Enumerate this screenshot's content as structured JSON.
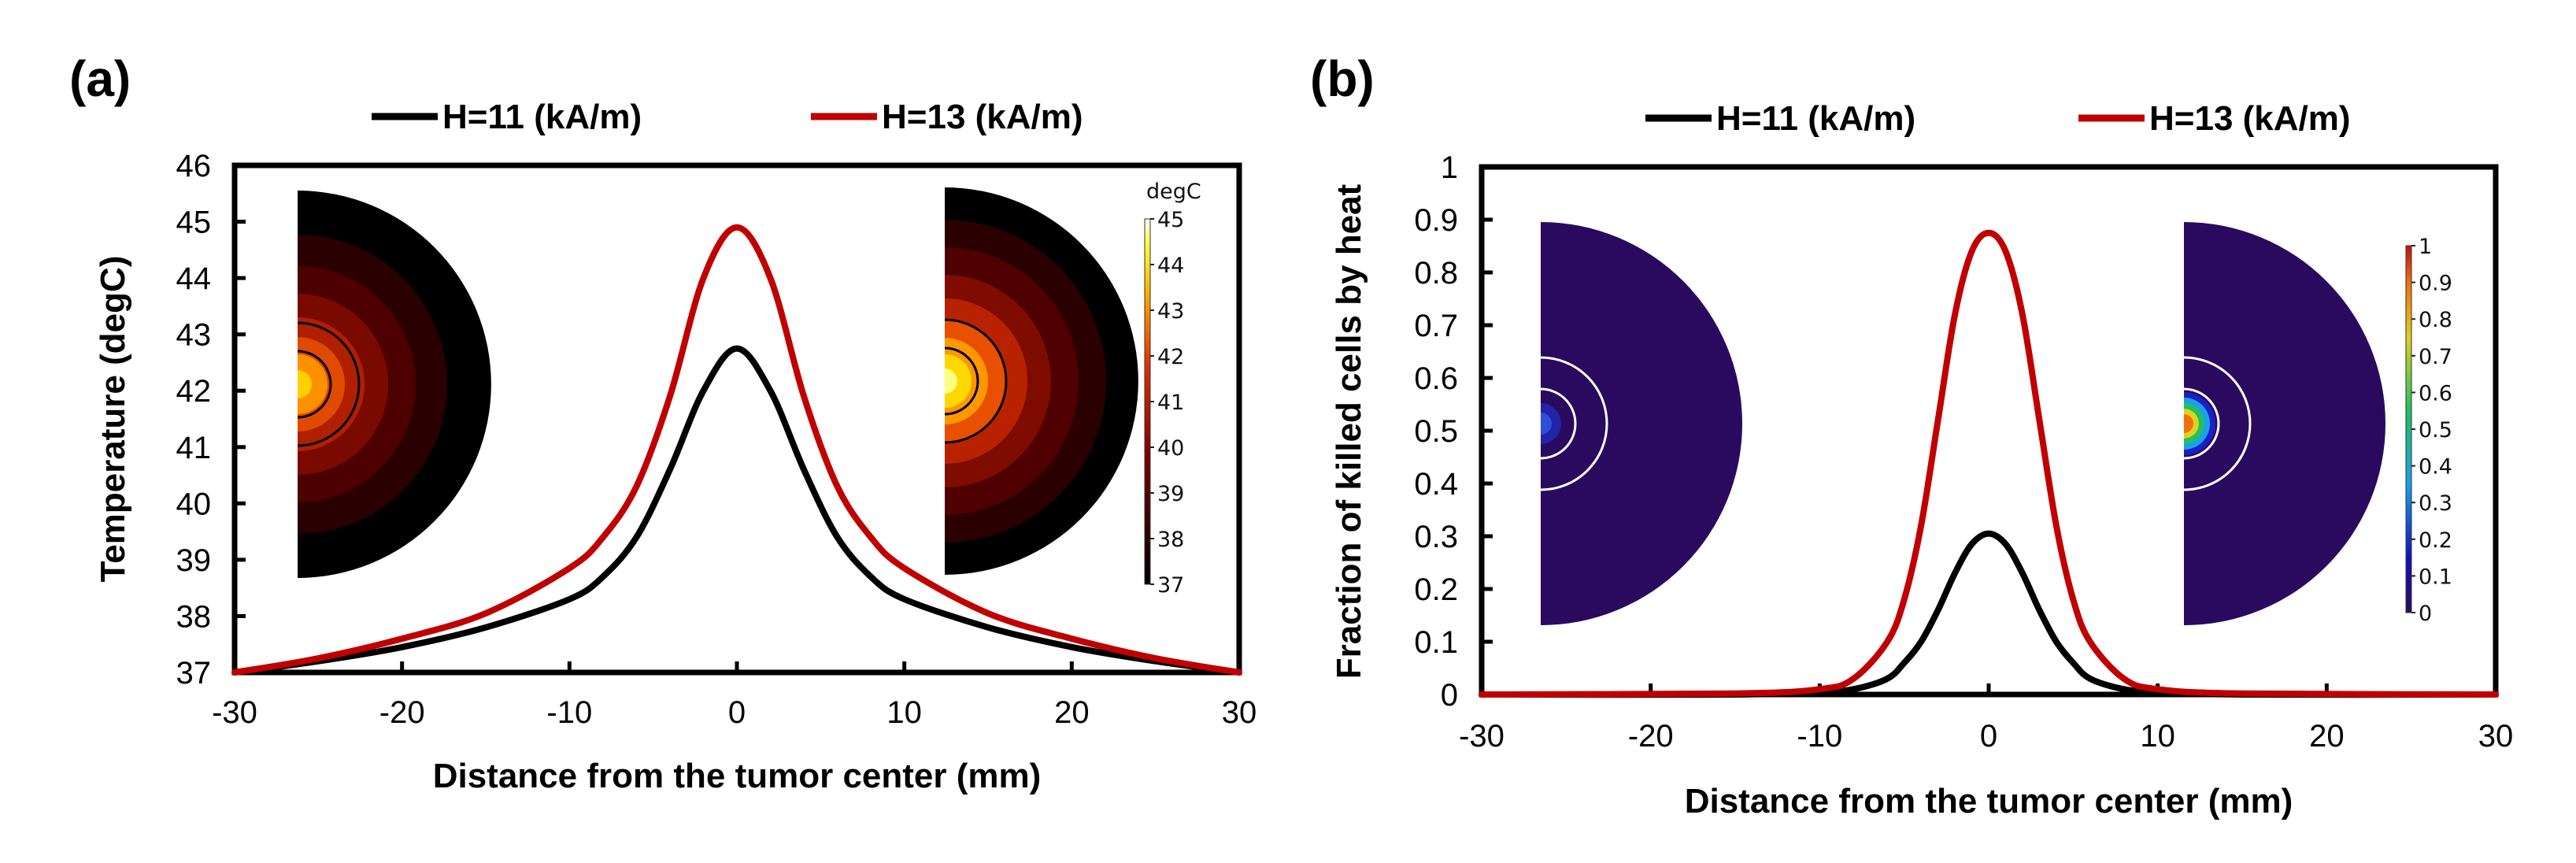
{
  "chart_data": [
    {
      "type": "line",
      "panel_label": "(a)",
      "xlabel": "Distance from the tumor center (mm)",
      "ylabel": "Temperature (degC)",
      "xlim": [
        -30,
        30
      ],
      "ylim": [
        37,
        46
      ],
      "x_ticks": [
        -30,
        -20,
        -10,
        0,
        10,
        20,
        30
      ],
      "y_ticks": [
        37,
        38,
        39,
        40,
        41,
        42,
        43,
        44,
        45,
        46
      ],
      "grid": false,
      "legend_position": "top",
      "series": [
        {
          "name": "H=11 (kA/m)",
          "color": "#000000",
          "x": [
            -30,
            -25,
            -20,
            -15,
            -10,
            -8,
            -6,
            -4,
            -2,
            0,
            2,
            4,
            6,
            8,
            10,
            15,
            20,
            25,
            30
          ],
          "y": [
            37.0,
            37.2,
            37.45,
            37.8,
            38.3,
            38.7,
            39.4,
            40.6,
            42.0,
            42.75,
            42.0,
            40.6,
            39.4,
            38.7,
            38.3,
            37.8,
            37.45,
            37.2,
            37.0
          ]
        },
        {
          "name": "H=13 (kA/m)",
          "color": "#c00000",
          "x": [
            -30,
            -25,
            -20,
            -15,
            -10,
            -8,
            -6,
            -4,
            -2,
            0,
            2,
            4,
            6,
            8,
            10,
            15,
            20,
            25,
            30
          ],
          "y": [
            37.0,
            37.25,
            37.6,
            38.05,
            38.85,
            39.4,
            40.3,
            41.9,
            44.0,
            44.9,
            44.0,
            41.9,
            40.3,
            39.4,
            38.85,
            38.05,
            37.6,
            37.25,
            37.0
          ]
        }
      ],
      "colorbar": {
        "title": "degC",
        "ticks": [
          "45",
          "44",
          "43",
          "42",
          "41",
          "40",
          "39",
          "38",
          "37"
        ]
      }
    },
    {
      "type": "line",
      "panel_label": "(b)",
      "xlabel": "Distance from the tumor center (mm)",
      "ylabel": "Fraction of killed cells by heat",
      "xlim": [
        -30,
        30
      ],
      "ylim": [
        0,
        1
      ],
      "x_ticks": [
        -30,
        -20,
        -10,
        0,
        10,
        20,
        30
      ],
      "y_ticks": [
        0,
        0.1,
        0.2,
        0.3,
        0.4,
        0.5,
        0.6,
        0.7,
        0.8,
        0.9,
        1
      ],
      "grid": false,
      "legend_position": "top",
      "series": [
        {
          "name": "H=11 (kA/m)",
          "color": "#000000",
          "x": [
            -30,
            -15,
            -10,
            -8,
            -6,
            -5,
            -4,
            -3,
            -2,
            -1,
            0,
            1,
            2,
            3,
            4,
            5,
            6,
            8,
            10,
            15,
            30
          ],
          "y": [
            0,
            0,
            0.005,
            0.01,
            0.03,
            0.06,
            0.1,
            0.16,
            0.23,
            0.285,
            0.305,
            0.285,
            0.23,
            0.16,
            0.1,
            0.06,
            0.03,
            0.01,
            0.005,
            0,
            0
          ]
        },
        {
          "name": "H=13 (kA/m)",
          "color": "#c00000",
          "x": [
            -30,
            -15,
            -10,
            -8,
            -6,
            -5,
            -4,
            -3,
            -2,
            -1,
            0,
            1,
            2,
            3,
            4,
            5,
            6,
            8,
            10,
            15,
            30
          ],
          "y": [
            0,
            0.002,
            0.01,
            0.03,
            0.1,
            0.18,
            0.32,
            0.52,
            0.72,
            0.84,
            0.875,
            0.84,
            0.72,
            0.52,
            0.32,
            0.18,
            0.1,
            0.03,
            0.01,
            0.002,
            0
          ]
        }
      ],
      "colorbar": {
        "title": "",
        "ticks": [
          "1",
          "0.9",
          "0.8",
          "0.7",
          "0.6",
          "0.5",
          "0.4",
          "0.3",
          "0.2",
          "0.1",
          "0"
        ]
      }
    }
  ]
}
